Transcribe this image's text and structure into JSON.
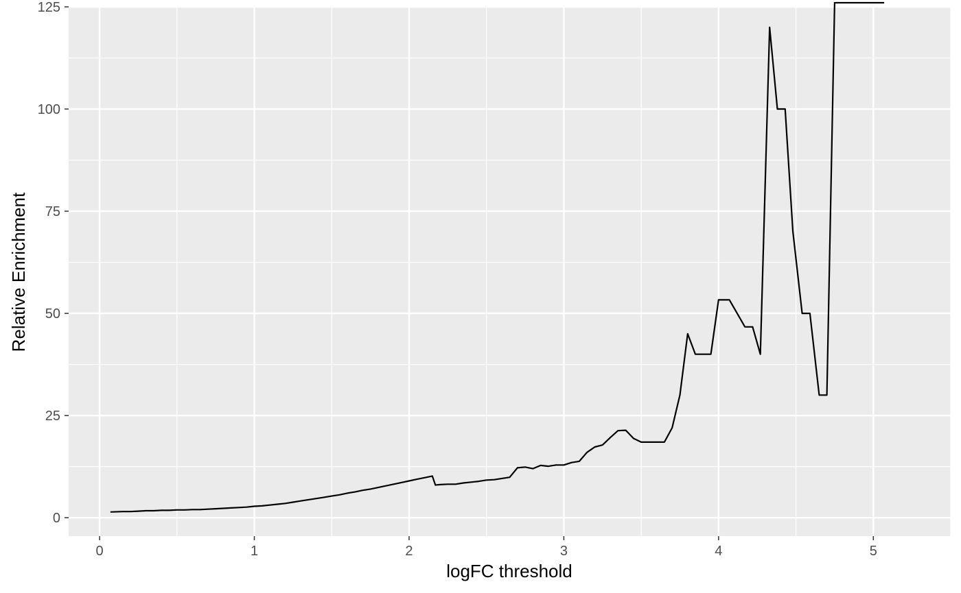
{
  "chart_data": {
    "type": "line",
    "title": "",
    "xlabel": "logFC threshold",
    "ylabel": "Relative Enrichment",
    "xlim": [
      -0.2,
      5.5
    ],
    "ylim": [
      -4.5,
      125
    ],
    "x_ticks": [
      0,
      1,
      2,
      3,
      4,
      5
    ],
    "y_ticks": [
      0,
      25,
      50,
      75,
      100,
      125
    ],
    "x_tick_labels": [
      "0",
      "1",
      "2",
      "3",
      "4",
      "5"
    ],
    "y_tick_labels": [
      "0",
      "25",
      "50",
      "75",
      "100",
      "125"
    ],
    "grid": true,
    "colors": {
      "panel": "#ebebeb",
      "grid": "#ffffff",
      "line": "#000000",
      "tick_text": "#4d4d4d",
      "tick_mark": "#333333"
    },
    "series": [
      {
        "x": [
          0.07,
          0.15,
          0.2,
          0.25,
          0.3,
          0.35,
          0.4,
          0.45,
          0.5,
          0.55,
          0.6,
          0.65,
          0.7,
          0.75,
          0.8,
          0.85,
          0.9,
          0.95,
          1.0,
          1.05,
          1.1,
          1.15,
          1.2,
          1.25,
          1.3,
          1.35,
          1.4,
          1.45,
          1.5,
          1.55,
          1.6,
          1.65,
          1.7,
          1.75,
          1.8,
          1.85,
          1.9,
          1.95,
          2.0,
          2.05,
          2.1,
          2.15,
          2.17,
          2.2,
          2.25,
          2.3,
          2.35,
          2.4,
          2.45,
          2.5,
          2.55,
          2.6,
          2.65,
          2.7,
          2.75,
          2.8,
          2.85,
          2.9,
          2.95,
          3.0,
          3.05,
          3.1,
          3.15,
          3.2,
          3.25,
          3.3,
          3.35,
          3.4,
          3.45,
          3.5,
          3.55,
          3.6,
          3.65,
          3.7,
          3.75,
          3.8,
          3.85,
          3.9,
          3.95,
          4.0,
          4.02,
          4.07,
          4.12,
          4.17,
          4.22,
          4.27,
          4.33,
          4.38,
          4.43,
          4.48,
          4.54,
          4.59,
          4.65,
          4.7,
          4.75,
          4.85,
          4.95,
          5.07
        ],
        "y": [
          1.4,
          1.5,
          1.5,
          1.6,
          1.7,
          1.7,
          1.8,
          1.8,
          1.9,
          1.9,
          2.0,
          2.0,
          2.1,
          2.2,
          2.3,
          2.4,
          2.5,
          2.6,
          2.8,
          2.9,
          3.1,
          3.3,
          3.5,
          3.8,
          4.1,
          4.4,
          4.7,
          5.0,
          5.3,
          5.6,
          6.0,
          6.3,
          6.7,
          7.0,
          7.4,
          7.8,
          8.2,
          8.6,
          9.0,
          9.4,
          9.8,
          10.2,
          8.0,
          8.1,
          8.2,
          8.2,
          8.5,
          8.7,
          8.9,
          9.2,
          9.3,
          9.6,
          9.9,
          12.2,
          12.4,
          12.0,
          12.8,
          12.6,
          12.9,
          12.9,
          13.5,
          13.8,
          16.0,
          17.3,
          17.8,
          19.6,
          21.3,
          21.4,
          19.4,
          18.5,
          18.5,
          18.5,
          18.5,
          22.0,
          30.0,
          45.0,
          40.0,
          40.0,
          40.0,
          53.3,
          53.3,
          53.3,
          50.0,
          46.7,
          46.7,
          40.0,
          120.0,
          100.0,
          100.0,
          70.0,
          50.0,
          50.0,
          30.0,
          30.0,
          126.0,
          126.0,
          126.0,
          126.0
        ]
      }
    ]
  }
}
